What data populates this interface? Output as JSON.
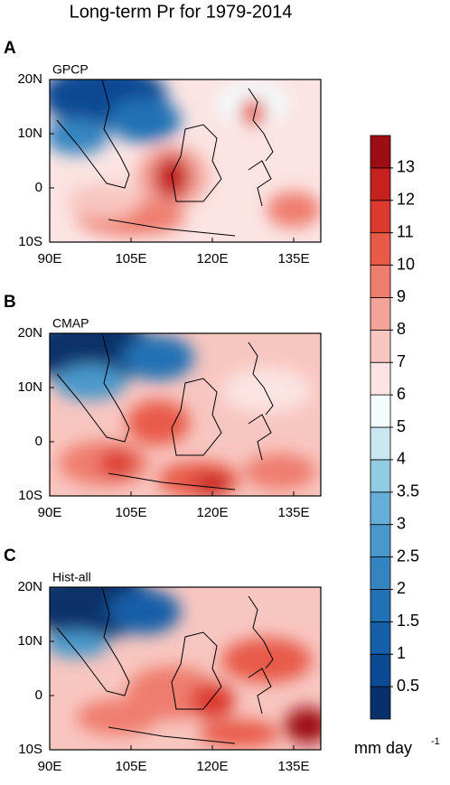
{
  "title": "Long-term Pr for 1979-2014",
  "xlim": [
    90,
    140
  ],
  "ylim": [
    -10,
    20
  ],
  "xticks": [
    {
      "value": 90,
      "label": "90E"
    },
    {
      "value": 105,
      "label": "105E"
    },
    {
      "value": 120,
      "label": "120E"
    },
    {
      "value": 135,
      "label": "135E"
    }
  ],
  "yticks": [
    {
      "value": 20,
      "label": "20N"
    },
    {
      "value": 10,
      "label": "10N"
    },
    0,
    {
      "value": -10,
      "label": "10S"
    }
  ],
  "panels": [
    {
      "letter": "A",
      "label": "GPCP"
    },
    {
      "letter": "B",
      "label": "CMAP"
    },
    {
      "letter": "C",
      "label": "Hist-all"
    }
  ],
  "colorbar": {
    "levels": [
      0.5,
      1,
      1.5,
      2,
      2.5,
      3,
      3.5,
      4,
      5,
      6,
      7,
      8,
      9,
      10,
      11,
      12,
      13
    ],
    "colors": [
      "#08306b",
      "#0c4a93",
      "#155fa8",
      "#2171b5",
      "#3484c0",
      "#4a98cb",
      "#66afd8",
      "#93cbe3",
      "#c9e8f1",
      "#f3fbfd",
      "#fbe4e3",
      "#f8c6c0",
      "#f4a398",
      "#ef7d6e",
      "#e85a48",
      "#dc3a2e",
      "#c6211f",
      "#9e0d14"
    ],
    "unit": "mm day",
    "unit_exponent": "-1"
  }
}
